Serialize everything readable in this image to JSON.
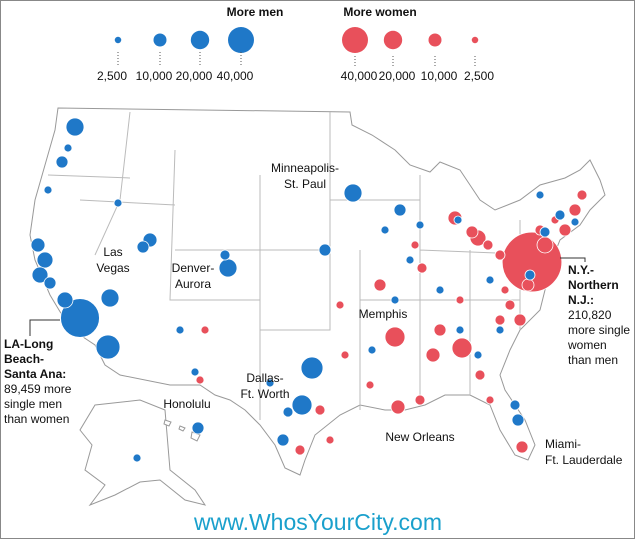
{
  "legend": {
    "men": {
      "title": "More men",
      "color": "#1f78c8",
      "values": [
        {
          "value": 2500,
          "label": "2,500"
        },
        {
          "value": 10000,
          "label": "10,000"
        },
        {
          "value": 20000,
          "label": "20,000"
        },
        {
          "value": 40000,
          "label": "40,000"
        }
      ]
    },
    "women": {
      "title": "More women",
      "color": "#e8505b",
      "values": [
        {
          "value": 40000,
          "label": "40,000"
        },
        {
          "value": 20000,
          "label": "20,000"
        },
        {
          "value": 10000,
          "label": "10,000"
        },
        {
          "value": 2500,
          "label": "2,500"
        }
      ]
    }
  },
  "labels": [
    {
      "lines": [
        "Minneapolis-",
        "St. Paul"
      ]
    },
    {
      "lines": [
        "Las",
        "Vegas"
      ]
    },
    {
      "lines": [
        "Denver-",
        "Aurora"
      ]
    },
    {
      "lines": [
        "Honolulu"
      ]
    },
    {
      "lines": [
        "Dallas-",
        "Ft. Worth"
      ]
    },
    {
      "lines": [
        "Memphis"
      ]
    },
    {
      "lines": [
        "New Orleans"
      ]
    },
    {
      "lines": [
        "Miami-",
        "Ft. Lauderdale"
      ]
    }
  ],
  "annotations": {
    "la": {
      "title": [
        "LA-Long",
        "Beach-",
        "Santa Ana:"
      ],
      "text": [
        "89,459 more",
        "single men",
        "than women"
      ],
      "value": 89459
    },
    "ny": {
      "title": [
        "N.Y.-",
        "Northern",
        "N.J.:"
      ],
      "text": [
        "210,820",
        "more single",
        "women",
        "than men"
      ],
      "value": 210820
    }
  },
  "men_values": [
    19200,
    8500,
    3800,
    11600,
    15100,
    15100,
    8500,
    15100,
    34100,
    19200,
    11600,
    8500,
    19200,
    5900,
    3800,
    19200,
    28600,
    23700,
    8500,
    8500,
    5900,
    8500,
    5900,
    5900,
    3800,
    5900,
    5900,
    8500,
    8500,
    3800,
    3800,
    3800,
    3800,
    3800,
    3800,
    3800,
    3800,
    3800,
    3800,
    3800,
    3800,
    3800,
    3800,
    3800,
    3800,
    3800
  ],
  "women_values": [
    23700,
    11600,
    23700,
    11600,
    11600,
    15100,
    8500,
    15100,
    8500,
    5900,
    8500,
    8500,
    5900,
    8500,
    5900,
    3800,
    5900,
    5900,
    8500,
    3800,
    3800,
    3800,
    3800,
    3800,
    5900,
    5900,
    3800,
    5900,
    5900,
    3800,
    8500,
    3800,
    3800,
    5900,
    5900,
    8500,
    3800
  ],
  "footer": "www.WhosYourCity.com"
}
